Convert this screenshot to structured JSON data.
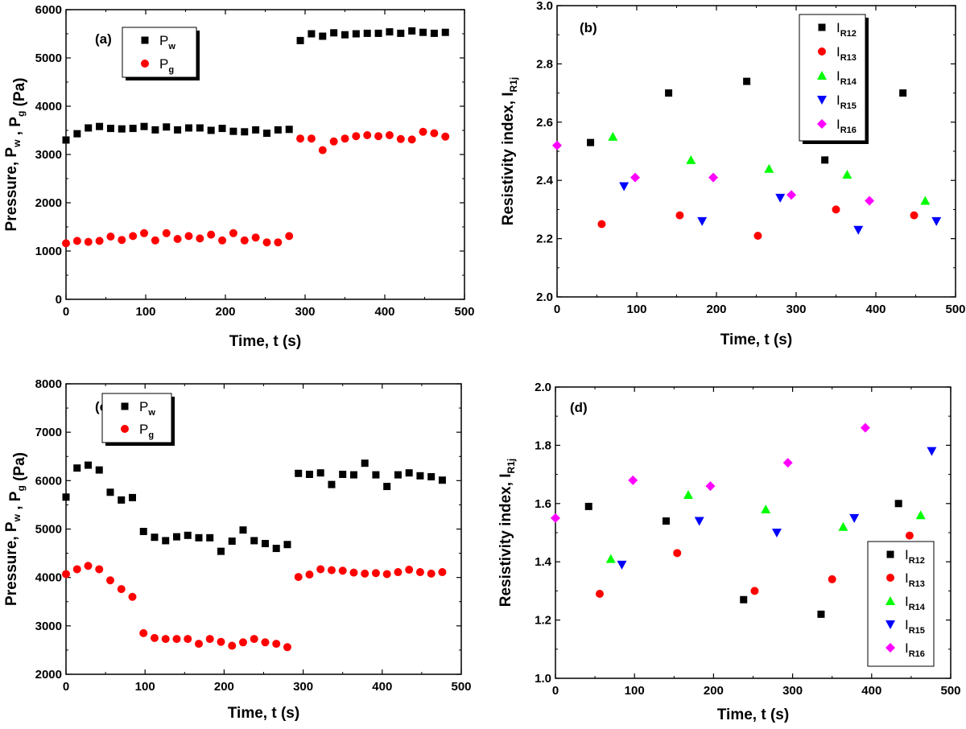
{
  "chart_data": [
    {
      "panel": "(a)",
      "type": "scatter",
      "xlabel": "Time, t (s)",
      "ylabel": "Pressure, P",
      "ylabel_w": "w",
      "ylabel_g": "g",
      "ylabel_unit": "(Pa)",
      "xlim": [
        0,
        500
      ],
      "ylim": [
        0,
        6000
      ],
      "xticks": [
        "0",
        "100",
        "200",
        "300",
        "400",
        "500"
      ],
      "yticks": [
        "0",
        "1000",
        "2000",
        "3000",
        "4000",
        "5000",
        "6000"
      ],
      "x": [
        0,
        14,
        28,
        42,
        56,
        70,
        84,
        98,
        112,
        126,
        140,
        154,
        168,
        182,
        196,
        210,
        224,
        238,
        252,
        266,
        280,
        294,
        308,
        322,
        336,
        350,
        364,
        378,
        392,
        406,
        420,
        434,
        448,
        462,
        476
      ],
      "series": [
        {
          "name": "P",
          "sub": "w",
          "marker": "square",
          "color": "#000000",
          "values": [
            3300,
            3430,
            3550,
            3580,
            3540,
            3530,
            3540,
            3580,
            3510,
            3570,
            3510,
            3550,
            3550,
            3500,
            3540,
            3480,
            3470,
            3510,
            3440,
            3510,
            3520,
            5360,
            5500,
            5450,
            5520,
            5480,
            5500,
            5510,
            5510,
            5540,
            5510,
            5560,
            5530,
            5510,
            5530
          ]
        },
        {
          "name": "P",
          "sub": "g",
          "marker": "circle",
          "color": "#ff0000",
          "values": [
            1160,
            1210,
            1190,
            1210,
            1300,
            1230,
            1310,
            1370,
            1220,
            1370,
            1250,
            1310,
            1260,
            1340,
            1220,
            1370,
            1220,
            1280,
            1180,
            1180,
            1310,
            3330,
            3330,
            3090,
            3270,
            3330,
            3380,
            3400,
            3380,
            3400,
            3320,
            3310,
            3470,
            3440,
            3370
          ]
        }
      ]
    },
    {
      "panel": "(b)",
      "type": "scatter",
      "xlabel": "Time, t (s)",
      "ylabel": "Resistivity index, I",
      "ylabel_sub": "R1j",
      "xlim": [
        0,
        500
      ],
      "ylim": [
        2.0,
        3.0
      ],
      "xticks": [
        "0",
        "100",
        "200",
        "300",
        "400",
        "500"
      ],
      "yticks": [
        "2.0",
        "2.2",
        "2.4",
        "2.6",
        "2.8",
        "3.0"
      ],
      "series": [
        {
          "name": "I",
          "sub": "R12",
          "marker": "square",
          "color": "#000000",
          "x": [
            42,
            140,
            238,
            336,
            434
          ],
          "values": [
            2.53,
            2.7,
            2.74,
            2.47,
            2.7
          ]
        },
        {
          "name": "I",
          "sub": "R13",
          "marker": "circle",
          "color": "#ff0000",
          "x": [
            56,
            154,
            252,
            350,
            448
          ],
          "values": [
            2.25,
            2.28,
            2.21,
            2.3,
            2.28
          ]
        },
        {
          "name": "I",
          "sub": "R14",
          "marker": "triangle-up",
          "color": "#00ff00",
          "x": [
            70,
            168,
            266,
            364,
            462
          ],
          "values": [
            2.55,
            2.47,
            2.44,
            2.42,
            2.33
          ]
        },
        {
          "name": "I",
          "sub": "R15",
          "marker": "triangle-down",
          "color": "#0000ff",
          "x": [
            84,
            182,
            280,
            378,
            476
          ],
          "values": [
            2.38,
            2.26,
            2.34,
            2.23,
            2.26
          ]
        },
        {
          "name": "I",
          "sub": "R16",
          "marker": "diamond",
          "color": "#ff00ff",
          "x": [
            0,
            98,
            196,
            294,
            392
          ],
          "values": [
            2.52,
            2.41,
            2.41,
            2.35,
            2.33
          ]
        }
      ]
    },
    {
      "panel": "(c)",
      "type": "scatter",
      "xlabel": "Time, t (s)",
      "ylabel": "Pressure, P",
      "ylabel_w": "w",
      "ylabel_g": "g",
      "ylabel_unit": "(Pa)",
      "xlim": [
        0,
        500
      ],
      "ylim": [
        2000,
        8000
      ],
      "xticks": [
        "0",
        "100",
        "200",
        "300",
        "400",
        "500"
      ],
      "yticks": [
        "2000",
        "3000",
        "4000",
        "5000",
        "6000",
        "7000",
        "8000"
      ],
      "x": [
        0,
        14,
        28,
        42,
        56,
        70,
        84,
        98,
        112,
        126,
        140,
        154,
        168,
        182,
        196,
        210,
        224,
        238,
        252,
        266,
        280,
        294,
        308,
        322,
        336,
        350,
        364,
        378,
        392,
        406,
        420,
        434,
        448,
        462,
        476
      ],
      "series": [
        {
          "name": "P",
          "sub": "w",
          "marker": "square",
          "color": "#000000",
          "values": [
            5660,
            6260,
            6320,
            6220,
            5760,
            5600,
            5650,
            4950,
            4830,
            4760,
            4840,
            4870,
            4820,
            4820,
            4540,
            4750,
            4980,
            4760,
            4700,
            4600,
            4680,
            6150,
            6130,
            6160,
            5920,
            6130,
            6120,
            6360,
            6120,
            5880,
            6120,
            6160,
            6100,
            6080,
            6010
          ]
        },
        {
          "name": "P",
          "sub": "g",
          "marker": "circle",
          "color": "#ff0000",
          "values": [
            4070,
            4170,
            4240,
            4170,
            3940,
            3760,
            3600,
            2850,
            2750,
            2730,
            2730,
            2730,
            2630,
            2730,
            2670,
            2590,
            2660,
            2730,
            2660,
            2630,
            2560,
            4010,
            4060,
            4170,
            4150,
            4140,
            4100,
            4080,
            4090,
            4070,
            4110,
            4160,
            4110,
            4080,
            4110
          ]
        }
      ]
    },
    {
      "panel": "(d)",
      "type": "scatter",
      "xlabel": "Time, t (s)",
      "ylabel": "Resistivity index, I",
      "ylabel_sub": "R1j",
      "xlim": [
        0,
        500
      ],
      "ylim": [
        1.0,
        2.0
      ],
      "xticks": [
        "0",
        "100",
        "200",
        "300",
        "400",
        "500"
      ],
      "yticks": [
        "1.0",
        "1.2",
        "1.4",
        "1.6",
        "1.8",
        "2.0"
      ],
      "series": [
        {
          "name": "I",
          "sub": "R12",
          "marker": "square",
          "color": "#000000",
          "x": [
            42,
            140,
            238,
            336,
            434
          ],
          "values": [
            1.59,
            1.54,
            1.27,
            1.22,
            1.6
          ]
        },
        {
          "name": "I",
          "sub": "R13",
          "marker": "circle",
          "color": "#ff0000",
          "x": [
            56,
            154,
            252,
            350,
            448
          ],
          "values": [
            1.29,
            1.43,
            1.3,
            1.34,
            1.49
          ]
        },
        {
          "name": "I",
          "sub": "R14",
          "marker": "triangle-up",
          "color": "#00ff00",
          "x": [
            70,
            168,
            266,
            364,
            462
          ],
          "values": [
            1.41,
            1.63,
            1.58,
            1.52,
            1.56
          ]
        },
        {
          "name": "I",
          "sub": "R15",
          "marker": "triangle-down",
          "color": "#0000ff",
          "x": [
            84,
            182,
            280,
            378,
            476
          ],
          "values": [
            1.39,
            1.54,
            1.5,
            1.55,
            1.78
          ]
        },
        {
          "name": "I",
          "sub": "R16",
          "marker": "diamond",
          "color": "#ff00ff",
          "x": [
            0,
            98,
            196,
            294,
            392
          ],
          "values": [
            1.55,
            1.68,
            1.66,
            1.74,
            1.86
          ]
        }
      ]
    }
  ]
}
